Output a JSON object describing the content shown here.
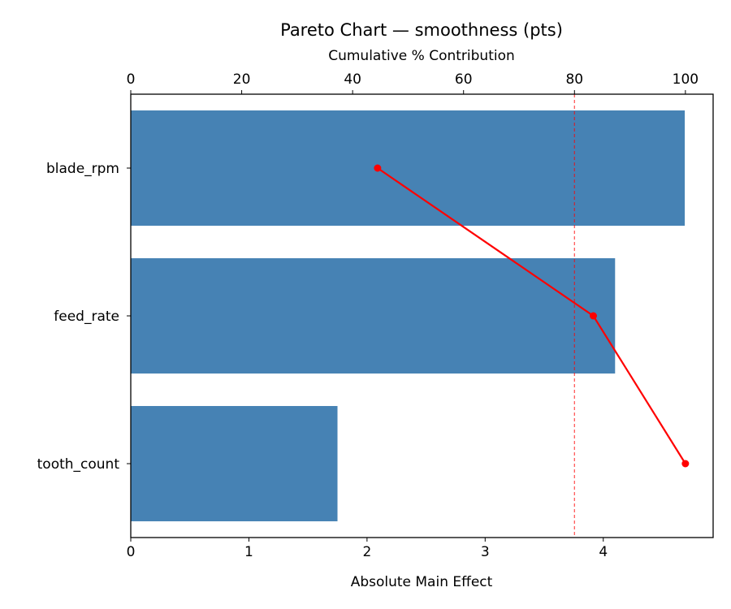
{
  "chart_data": {
    "type": "bar",
    "orientation": "horizontal",
    "title": "Pareto Chart — smoothness (pts)",
    "xlabel": "Absolute Main Effect",
    "ylabel": "",
    "secondary_xlabel": "Cumulative % Contribution",
    "categories": [
      "blade_rpm",
      "feed_rate",
      "tooth_count"
    ],
    "values": [
      4.69,
      4.1,
      1.75
    ],
    "series": [
      {
        "name": "Absolute Main Effect",
        "type": "bar",
        "color": "#4682b4",
        "values": [
          4.69,
          4.1,
          1.75
        ]
      },
      {
        "name": "Cumulative %",
        "type": "line",
        "color": "#ff0000",
        "values": [
          44.5,
          83.4,
          100.0
        ]
      }
    ],
    "threshold": {
      "value": 80,
      "axis": "cumulative",
      "style": "dashed",
      "color": "#ff0000"
    },
    "xlim": [
      0,
      4.93
    ],
    "secondary_xlim": [
      0,
      105
    ],
    "xticks": [
      "0",
      "1",
      "2",
      "3",
      "4"
    ],
    "secondary_xticks": [
      "0",
      "20",
      "40",
      "60",
      "80",
      "100"
    ],
    "grid": false,
    "legend": null
  }
}
